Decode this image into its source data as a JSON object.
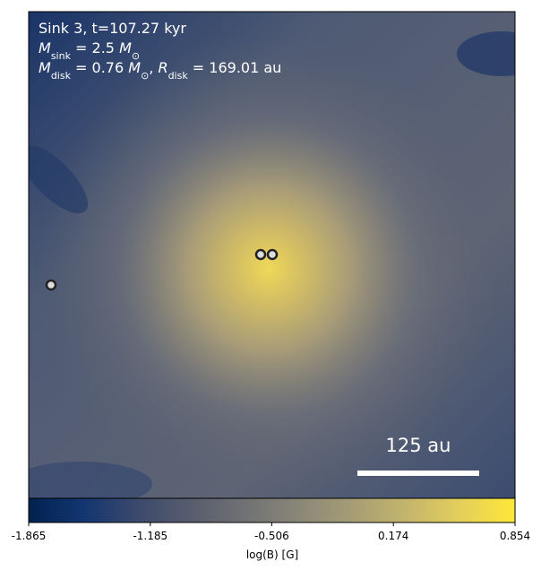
{
  "chart_data": {
    "type": "image",
    "annotations": [
      [
        "Sink 3, t=107.27 kyr"
      ],
      [
        "M",
        "sink",
        " = 2.5 ",
        "M",
        "⊙"
      ],
      [
        "M",
        "disk",
        " = 0.76 ",
        "M",
        "⊙",
        ", ",
        "R",
        "disk",
        " = 169.01 au"
      ]
    ],
    "scale_bar": "125 au",
    "colormap": "cividis",
    "colorbar_label": "log(B) [G]",
    "clim": [
      -1.865,
      0.854
    ],
    "cticks": [
      -1.865,
      -1.185,
      -0.506,
      0.174,
      0.854
    ]
  }
}
